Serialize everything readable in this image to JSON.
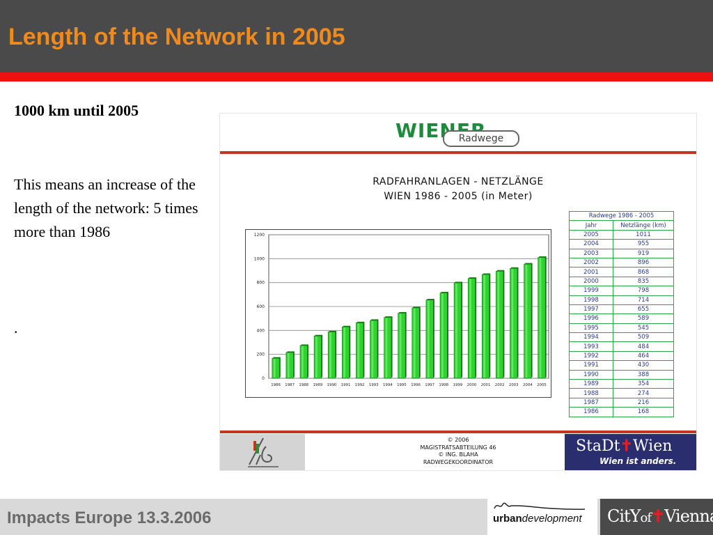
{
  "slide": {
    "title": "Length of the Network in 2005",
    "subheading": "1000 km until 2005",
    "body": "This means an increase of the length of the network:  5 times more than 1986",
    "bullet": ".",
    "footer_text": "Impacts Europe 13.3.2006"
  },
  "colors": {
    "header_bg": "#4a4a4a",
    "title": "#f08a1c",
    "accent_red": "#ee1111",
    "bar_green": "#2dd42d",
    "table_border": "#29a84a",
    "stadt_bg": "#2a2d6e"
  },
  "poster": {
    "logo_word": "WIENER",
    "logo_pill": "Radwege",
    "title_line1": "RADFAHRANLAGEN - NETZLÄNGE",
    "title_line2": "WIEN 1986 - 2005 (in Meter)",
    "credit": [
      "© 2006",
      "MAGISTRATSABTEILUNG 46",
      "© ING. BLAHA",
      "RADWEGEKOORDINATOR"
    ],
    "stadt_logo": {
      "word": "StaDt",
      "cross": "✝",
      "city": "Wien",
      "tagline": "Wien ist anders."
    }
  },
  "logos": {
    "urban_prefix": "urban",
    "urban_suffix": "development",
    "city_prefix": "CitY",
    "city_of": "of",
    "city_cross": "✝",
    "city_name": "Vienna"
  },
  "table": {
    "title": "Radwege 1986 - 2005",
    "headers": [
      "Jahr",
      "Netzlänge (km)"
    ],
    "rows": [
      [
        "2005",
        "1011"
      ],
      [
        "2004",
        "955"
      ],
      [
        "2003",
        "919"
      ],
      [
        "2002",
        "896"
      ],
      [
        "2001",
        "868"
      ],
      [
        "2000",
        "835"
      ],
      [
        "1999",
        "798"
      ],
      [
        "1998",
        "714"
      ],
      [
        "1997",
        "655"
      ],
      [
        "1996",
        "589"
      ],
      [
        "1995",
        "545"
      ],
      [
        "1994",
        "509"
      ],
      [
        "1993",
        "484"
      ],
      [
        "1992",
        "464"
      ],
      [
        "1991",
        "430"
      ],
      [
        "1990",
        "388"
      ],
      [
        "1989",
        "354"
      ],
      [
        "1988",
        "274"
      ],
      [
        "1987",
        "216"
      ],
      [
        "1986",
        "168"
      ]
    ]
  },
  "chart_data": {
    "type": "bar",
    "categories": [
      "1986",
      "1987",
      "1988",
      "1989",
      "1990",
      "1991",
      "1992",
      "1993",
      "1994",
      "1995",
      "1996",
      "1997",
      "1998",
      "1999",
      "2000",
      "2001",
      "2002",
      "2003",
      "2004",
      "2005"
    ],
    "values": [
      168,
      216,
      274,
      354,
      388,
      430,
      464,
      484,
      509,
      545,
      589,
      655,
      714,
      798,
      835,
      868,
      896,
      919,
      955,
      1011
    ],
    "yticks": [
      0,
      200,
      400,
      600,
      800,
      1000,
      1200
    ],
    "ylim": [
      0,
      1200
    ],
    "grid": true,
    "legend": "none"
  }
}
